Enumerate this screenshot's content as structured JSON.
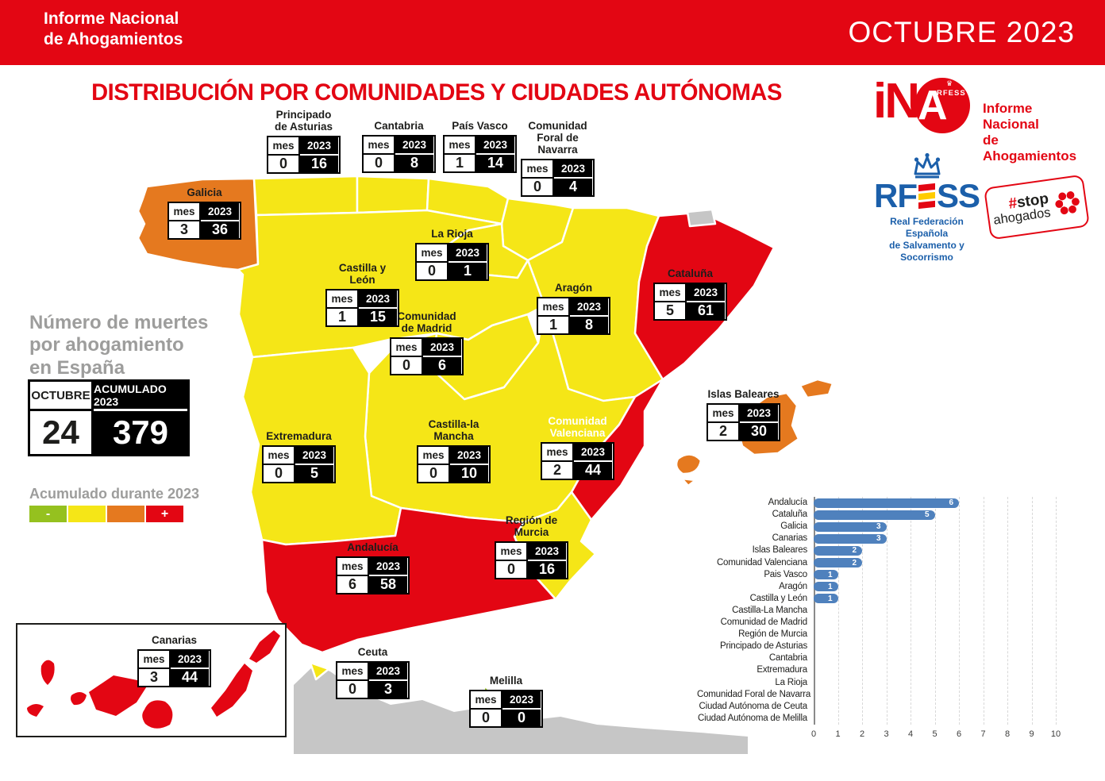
{
  "header": {
    "brand": "Informe Nacional\nde Ahogamientos",
    "period": "OCTUBRE 2023",
    "bg_color": "#e30613"
  },
  "title": "DISTRIBUCIÓN POR COMUNIDADES Y CIUDADES AUTÓNOMAS",
  "summary": {
    "heading": "Número de muertes\npor ahogamiento\nen España",
    "month_header": "OCTUBRE",
    "acc_header": "ACUMULADO 2023",
    "month_value": "24",
    "acc_value": "379"
  },
  "legend": {
    "title": "Acumulado durante 2023",
    "minus": "-",
    "plus": "+",
    "colors": [
      "#95c11f",
      "#f5e617",
      "#e5791f",
      "#e30613"
    ]
  },
  "map": {
    "mes_header": "mes",
    "year_header": "2023",
    "severity_colors": {
      "low": "#95c11f",
      "mid": "#f5e617",
      "high": "#e5791f",
      "max": "#e30613",
      "neutral": "#c6c6c6"
    },
    "regions": [
      {
        "name": "Principado de Asturias",
        "label": "Principado\nde Asturias",
        "mes": "0",
        "year": "16"
      },
      {
        "name": "Cantabria",
        "label": "Cantabria",
        "mes": "0",
        "year": "8"
      },
      {
        "name": "País Vasco",
        "label": "País Vasco",
        "mes": "1",
        "year": "14"
      },
      {
        "name": "Comunidad Foral de Navarra",
        "label": "Comunidad\nForal de\nNavarra",
        "mes": "0",
        "year": "4"
      },
      {
        "name": "Galicia",
        "label": "Galicia",
        "mes": "3",
        "year": "36"
      },
      {
        "name": "La Rioja",
        "label": "La Rioja",
        "mes": "0",
        "year": "1"
      },
      {
        "name": "Castilla y León",
        "label": "Castilla y León",
        "mes": "1",
        "year": "15"
      },
      {
        "name": "Comunidad de Madrid",
        "label": "Comunidad\nde Madrid",
        "mes": "0",
        "year": "6"
      },
      {
        "name": "Aragón",
        "label": "Aragón",
        "mes": "1",
        "year": "8"
      },
      {
        "name": "Cataluña",
        "label": "Cataluña",
        "mes": "5",
        "year": "61"
      },
      {
        "name": "Extremadura",
        "label": "Extremadura",
        "mes": "0",
        "year": "5"
      },
      {
        "name": "Castilla-la Mancha",
        "label": "Castilla-la Mancha",
        "mes": "0",
        "year": "10"
      },
      {
        "name": "Comunidad Valenciana",
        "label": "Comunidad\nValenciana",
        "mes": "2",
        "year": "44"
      },
      {
        "name": "Islas Baleares",
        "label": "Islas Baleares",
        "mes": "2",
        "year": "30"
      },
      {
        "name": "Región de Murcia",
        "label": "Región de\nMurcia",
        "mes": "0",
        "year": "16"
      },
      {
        "name": "Andalucía",
        "label": "Andalucía",
        "mes": "6",
        "year": "58"
      },
      {
        "name": "Canarias",
        "label": "Canarias",
        "mes": "3",
        "year": "44"
      },
      {
        "name": "Ceuta",
        "label": "Ceuta",
        "mes": "0",
        "year": "3"
      },
      {
        "name": "Melilla",
        "label": "Melilla",
        "mes": "0",
        "year": "0"
      }
    ]
  },
  "logos": {
    "ina": {
      "i_n": "iN",
      "a": "A",
      "crown": "♛",
      "rfess_small": "RFESS",
      "caption": "Informe Nacional\nde Ahogamientos"
    },
    "rfess": {
      "letters_left": "RF",
      "letters_right": "SS",
      "caption": "Real Federación Española\nde Salvamento y Socorrismo",
      "blue": "#1b5faa"
    },
    "stop": {
      "hash": "#",
      "stop": "stop",
      "word": "ahogados"
    }
  },
  "chart_data": {
    "type": "bar",
    "orientation": "horizontal",
    "categories": [
      "Andalucía",
      "Cataluña",
      "Galicia",
      "Canarias",
      "Islas Baleares",
      "Comunidad Valenciana",
      "Pais Vasco",
      "Aragón",
      "Castilla y León",
      "Castilla-La Mancha",
      "Comunidad de Madrid",
      "Región de Murcia",
      "Principado de Asturias",
      "Cantabria",
      "Extremadura",
      "La Rioja",
      "Comunidad Foral de Navarra",
      "Ciudad Autónoma de Ceuta",
      "Ciudad Autónoma de Melilla"
    ],
    "values": [
      6,
      5,
      3,
      3,
      2,
      2,
      1,
      1,
      1,
      0,
      0,
      0,
      0,
      0,
      0,
      0,
      0,
      0,
      0
    ],
    "xlim": [
      0,
      10
    ],
    "xticks": [
      0,
      1,
      2,
      3,
      4,
      5,
      6,
      7,
      8,
      9,
      10
    ],
    "bar_color": "#4f81bd",
    "grid": true,
    "legend_position": "none",
    "title": ""
  }
}
